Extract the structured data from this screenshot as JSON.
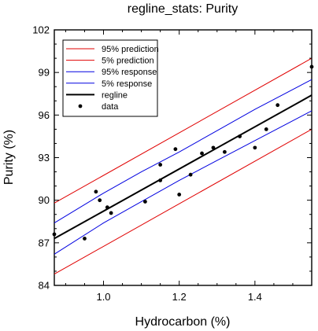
{
  "chart_data": {
    "type": "line",
    "title": "regline_stats: Purity",
    "xlabel": "Hydrocarbon (%)",
    "ylabel": "Purity (%)",
    "xlim": [
      0.87,
      1.55
    ],
    "ylim": [
      84,
      102
    ],
    "xticks": [
      1.0,
      1.2,
      1.4
    ],
    "xtick_labels": [
      "1.0",
      "1.2",
      "1.4"
    ],
    "yticks": [
      84,
      87,
      90,
      93,
      96,
      99,
      102
    ],
    "ytick_labels": [
      "84",
      "87",
      "90",
      "93",
      "96",
      "99",
      "102"
    ],
    "legend_position": "top-left",
    "grid": false,
    "series": [
      {
        "name": "95% prediction",
        "color": "#e00000",
        "width": 1,
        "x": [
          0.87,
          1.55
        ],
        "y": [
          89.8,
          100.0
        ]
      },
      {
        "name": "5% prediction",
        "color": "#e00000",
        "width": 1,
        "x": [
          0.87,
          1.55
        ],
        "y": [
          84.8,
          95.0
        ]
      },
      {
        "name": "95% response",
        "color": "#0000e0",
        "width": 1,
        "x": [
          0.87,
          1.0,
          1.1,
          1.2,
          1.3,
          1.4,
          1.55
        ],
        "y": [
          88.4,
          90.5,
          92.0,
          93.4,
          94.9,
          96.4,
          98.5
        ]
      },
      {
        "name": "5% response",
        "color": "#0000e0",
        "width": 1,
        "x": [
          0.87,
          1.0,
          1.1,
          1.2,
          1.3,
          1.4,
          1.55
        ],
        "y": [
          86.2,
          88.4,
          89.9,
          91.4,
          92.8,
          94.2,
          96.3
        ]
      },
      {
        "name": "regline",
        "color": "#000000",
        "width": 2,
        "x": [
          0.87,
          1.55
        ],
        "y": [
          87.3,
          97.4
        ]
      }
    ],
    "points": {
      "name": "data",
      "color": "#000000",
      "x": [
        0.87,
        0.95,
        0.98,
        0.99,
        1.01,
        1.02,
        1.11,
        1.15,
        1.15,
        1.19,
        1.2,
        1.23,
        1.26,
        1.29,
        1.32,
        1.36,
        1.4,
        1.43,
        1.46,
        1.55
      ],
      "y": [
        87.6,
        87.3,
        90.6,
        90.0,
        89.5,
        89.1,
        89.9,
        91.4,
        92.5,
        93.6,
        90.4,
        91.8,
        93.3,
        93.7,
        93.4,
        94.5,
        93.7,
        95.0,
        96.7,
        99.4
      ]
    }
  }
}
